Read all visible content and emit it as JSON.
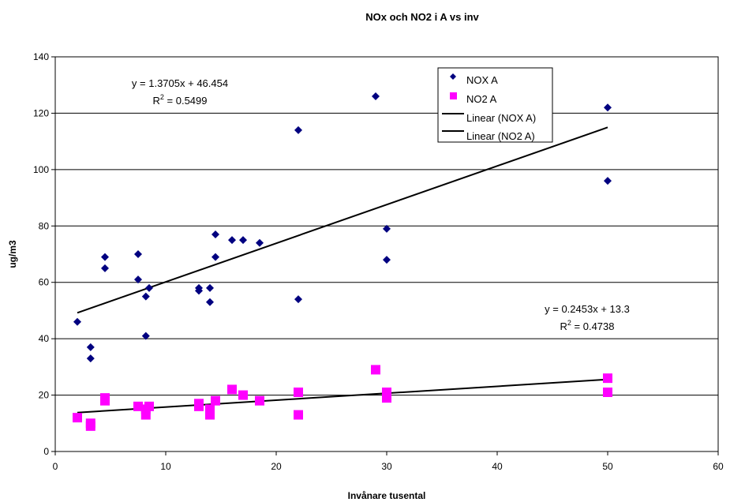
{
  "chart_data": {
    "type": "scatter",
    "title": "NOx och NO2 i A vs inv",
    "xlabel": "Invånare tusental",
    "ylabel": "ug/m3",
    "xlim": [
      0,
      60
    ],
    "ylim": [
      0,
      140
    ],
    "xticks": [
      "0",
      "10",
      "20",
      "30",
      "40",
      "50",
      "60"
    ],
    "yticks": [
      "0",
      "20",
      "40",
      "60",
      "80",
      "100",
      "120",
      "140"
    ],
    "grid": "horizontal",
    "legend_position": "top-right",
    "series": [
      {
        "name": "NOX A",
        "marker": "diamond",
        "color": "#000080",
        "points": [
          [
            2,
            46
          ],
          [
            3.2,
            37
          ],
          [
            3.2,
            33
          ],
          [
            4.5,
            69
          ],
          [
            4.5,
            65
          ],
          [
            7.5,
            70
          ],
          [
            7.5,
            61
          ],
          [
            8.2,
            55
          ],
          [
            8.2,
            41
          ],
          [
            8.5,
            58
          ],
          [
            13,
            58
          ],
          [
            13,
            57
          ],
          [
            14,
            58
          ],
          [
            14,
            53
          ],
          [
            14.5,
            77
          ],
          [
            14.5,
            69
          ],
          [
            16,
            75
          ],
          [
            17,
            75
          ],
          [
            18.5,
            74
          ],
          [
            22,
            114
          ],
          [
            22,
            54
          ],
          [
            29,
            126
          ],
          [
            30,
            79
          ],
          [
            30,
            68
          ],
          [
            50,
            122
          ],
          [
            50,
            96
          ]
        ]
      },
      {
        "name": "NO2 A",
        "marker": "square",
        "color": "#ff00ff",
        "points": [
          [
            2,
            12
          ],
          [
            3.2,
            10
          ],
          [
            3.2,
            9
          ],
          [
            4.5,
            19
          ],
          [
            4.5,
            18
          ],
          [
            7.5,
            16
          ],
          [
            8.2,
            13
          ],
          [
            8.2,
            15
          ],
          [
            8.5,
            16
          ],
          [
            13,
            17
          ],
          [
            13,
            16
          ],
          [
            14,
            15
          ],
          [
            14,
            13
          ],
          [
            14.5,
            18
          ],
          [
            16,
            22
          ],
          [
            17,
            20
          ],
          [
            18.5,
            18
          ],
          [
            22,
            21
          ],
          [
            22,
            13
          ],
          [
            29,
            29
          ],
          [
            30,
            21
          ],
          [
            30,
            19
          ],
          [
            50,
            26
          ],
          [
            50,
            21
          ]
        ]
      }
    ],
    "trendlines": [
      {
        "name": "Linear (NOX A)",
        "color": "#000000",
        "slope": 1.3705,
        "intercept": 46.454,
        "x_range": [
          2,
          50
        ],
        "equation": "y = 1.3705x + 46.454",
        "r2_prefix": "R",
        "r2_value": " = 0.5499"
      },
      {
        "name": "Linear (NO2 A)",
        "color": "#000000",
        "slope": 0.2453,
        "intercept": 13.3,
        "x_range": [
          2,
          50
        ],
        "equation": "y = 0.2453x + 13.3",
        "r2_prefix": "R",
        "r2_value": " = 0.4738"
      }
    ],
    "r2_superscript": "2"
  }
}
